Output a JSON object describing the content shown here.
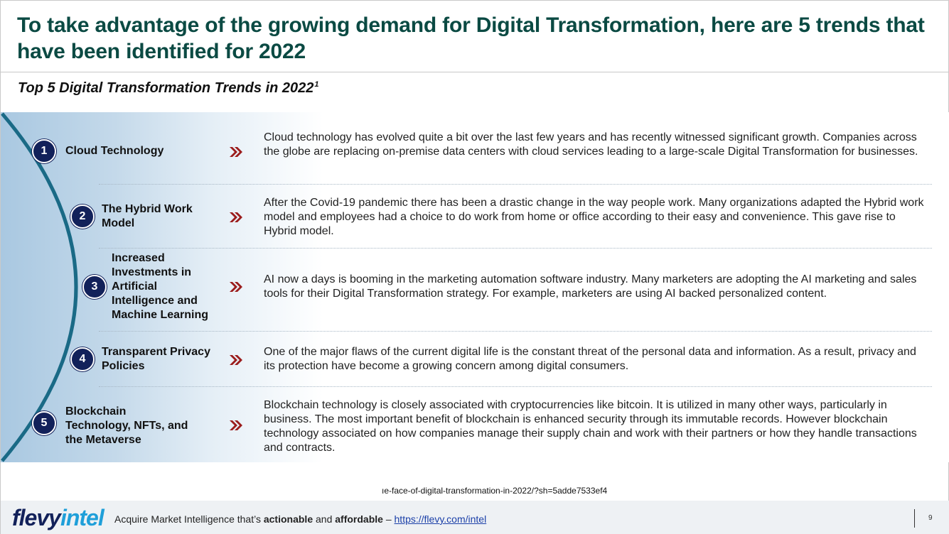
{
  "title": "To take advantage of the growing demand for Digital Transformation, here are 5 trends that have been identified for 2022",
  "subtitle": "Top 5 Digital Transformation Trends in 2022",
  "subtitle_sup": "1",
  "colors": {
    "title": "#0b4a43",
    "circle": "#12215a",
    "arc": "#1a6a86",
    "chevron": "#9b1c1c",
    "brand_dark": "#12215a",
    "brand_light": "#1f9fd9"
  },
  "trends": [
    {
      "number": "1",
      "label": "Cloud Technology",
      "description": "Cloud technology has evolved quite a bit over the last few years and has recently witnessed significant growth. Companies across the globe are replacing on-premise data centers with cloud services leading to a large-scale Digital Transformation for businesses."
    },
    {
      "number": "2",
      "label": "The Hybrid Work Model",
      "description": "After the Covid-19 pandemic there has been a drastic change in the way people work. Many organizations adapted the Hybrid work model and employees had a choice to do work from home or office according to their easy and convenience. This gave rise to Hybrid model."
    },
    {
      "number": "3",
      "label": "Increased Investments in Artificial Intelligence and Machine Learning",
      "description": "AI now a days is booming in the marketing automation software industry. Many marketers are adopting the AI marketing and sales tools for their Digital Transformation strategy. For example, marketers are using AI backed personalized content."
    },
    {
      "number": "4",
      "label": "Transparent Privacy Policies",
      "description": "One of the major flaws of the current digital life is the constant threat of the personal data and information. As a result, privacy and its protection have become a growing concern among digital consumers."
    },
    {
      "number": "5",
      "label": "Blockchain Technology, NFTs, and the Metaverse",
      "description": "Blockchain technology is closely associated with cryptocurrencies like bitcoin. It is utilized in many other ways, particularly in business. The most important benefit of blockchain is enhanced security through its immutable records. However blockchain technology associated on how companies manage their supply chain and work with their partners or how they handle transactions and contracts."
    }
  ],
  "source_fragment": "ıe-face-of-digital-transformation-in-2022/?sh=5adde7533ef4",
  "footer": {
    "logo_part1": "flevy",
    "logo_part2": "intel",
    "tagline_prefix": "Acquire Market Intelligence that’s ",
    "tagline_bold1": "actionable",
    "tagline_mid": " and ",
    "tagline_bold2": "affordable",
    "tagline_dash": " – ",
    "link": "https://flevy.com/intel",
    "page_number": "9"
  }
}
